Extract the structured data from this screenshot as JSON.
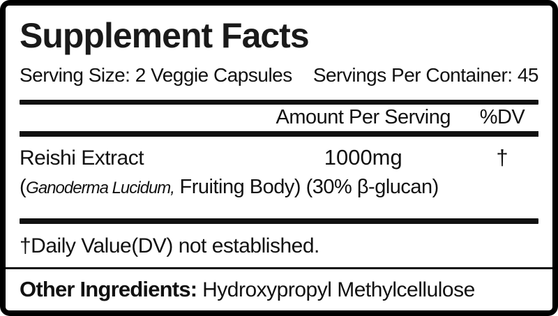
{
  "label": {
    "title": "Supplement Facts",
    "serving_size": "Serving Size: 2 Veggie Capsules",
    "servings_per_container": "Servings Per Container: 45",
    "table_header": {
      "amount": "Amount Per Serving",
      "dv": "%DV"
    },
    "rows": [
      {
        "name": "Reishi Extract",
        "amount": "1000mg",
        "dv": "†",
        "detail_prefix": "(",
        "detail_italic": "Ganoderma Lucidum,",
        "detail_rest": " Fruiting Body) (30% β-glucan)"
      }
    ],
    "footnote": "†Daily Value(DV) not established.",
    "other_ingredients": {
      "label": "Other Ingredients:",
      "value": " Hydroxypropyl Methylcellulose"
    },
    "colors": {
      "text": "#111111",
      "background": "#ffffff",
      "border": "#000000"
    }
  }
}
